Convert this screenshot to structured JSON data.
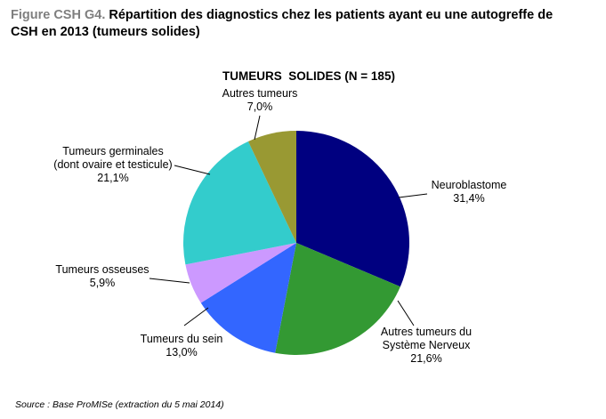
{
  "figure": {
    "label": "Figure CSH G4.",
    "title": "Répartition des diagnostics chez les patients ayant eu une autogreffe de CSH en 2013 (tumeurs solides)"
  },
  "source": "Source : Base ProMISe (extraction du 5 mai 2014)",
  "chart_data": {
    "type": "pie",
    "title": "TUMEURS  SOLIDES (N = 185)",
    "slices": [
      {
        "label": [
          "Neuroblastome"
        ],
        "value": 31.4,
        "value_text": "31,4%",
        "color": "#000080"
      },
      {
        "label": [
          "Autres tumeurs du",
          "Système Nerveux"
        ],
        "value": 21.6,
        "value_text": "21,6%",
        "color": "#339933"
      },
      {
        "label": [
          "Tumeurs du sein"
        ],
        "value": 13.0,
        "value_text": "13,0%",
        "color": "#3366ff"
      },
      {
        "label": [
          "Tumeurs osseuses"
        ],
        "value": 5.9,
        "value_text": "5,9%",
        "color": "#cc99ff"
      },
      {
        "label": [
          "Tumeurs germinales",
          "(dont ovaire et testicule)"
        ],
        "value": 21.1,
        "value_text": "21,1%",
        "color": "#33cccc"
      },
      {
        "label": [
          "Autres tumeurs"
        ],
        "value": 7.0,
        "value_text": "7,0%",
        "color": "#999933"
      }
    ]
  }
}
